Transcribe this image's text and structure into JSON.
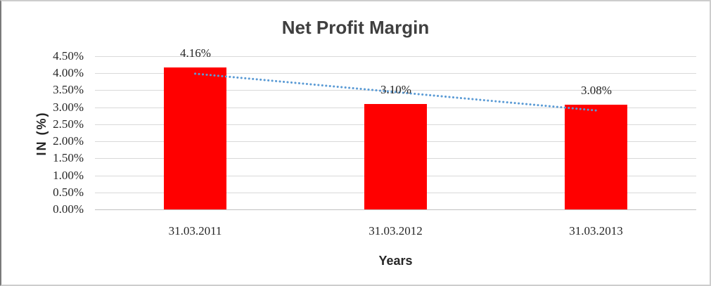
{
  "frame": {
    "background": "#ffffff",
    "border_color": "#cdcdcd"
  },
  "chart_data": {
    "type": "bar",
    "title": "Net Profit Margin",
    "categories": [
      "31.03.2011",
      "31.03.2012",
      "31.03.2013"
    ],
    "values": [
      4.16,
      3.1,
      3.08
    ],
    "data_labels": [
      "4.16%",
      "3.10%",
      "3.08%"
    ],
    "xlabel": "Years",
    "ylabel": "IN (%)",
    "ylim": [
      0,
      4.5
    ],
    "ytick_values": [
      0,
      0.5,
      1,
      1.5,
      2,
      2.5,
      3,
      3.5,
      4,
      4.5
    ],
    "ytick_labels": [
      "0.00%",
      "0.50%",
      "1.00%",
      "1.50%",
      "2.00%",
      "2.50%",
      "3.00%",
      "3.50%",
      "4.00%",
      "4.50%"
    ],
    "grid": true,
    "legend": "none",
    "bar_color": "#ff0000",
    "gridline_color": "#d9d9d9",
    "axis_line_color": "#c0c0c0",
    "text_color": "#262626",
    "title_color": "#3f3f3f",
    "trendline": {
      "type": "linear",
      "style": "dotted",
      "color": "#5b9bd5"
    }
  }
}
